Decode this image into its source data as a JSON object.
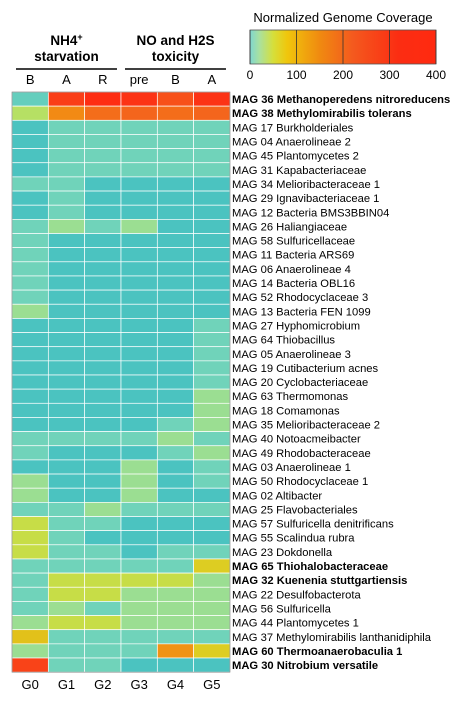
{
  "chart_data": {
    "type": "heatmap",
    "legend": {
      "title": "Normalized Genome Coverage",
      "ticks": [
        0,
        100,
        200,
        300,
        400
      ],
      "stops": [
        "#7fd6d0",
        "#a9e1a0",
        "#d6df3a",
        "#f0c60c",
        "#f08a10",
        "#f45a1e",
        "#fb2d12",
        "#ff2a10"
      ]
    },
    "condition_headers": [
      {
        "lines": [
          "NH4+",
          "starvation"
        ],
        "sup_text": "+"
      },
      {
        "lines": [
          "NO and H2S",
          "toxicity"
        ]
      }
    ],
    "columns": [
      "B",
      "A",
      "R",
      "pre",
      "B",
      "A"
    ],
    "groups": [
      "G0",
      "G1",
      "G2",
      "G3",
      "G4",
      "G5"
    ],
    "rows": [
      {
        "label": "MAG 36 Methanoperedens nitroreducens",
        "bold": true,
        "values": [
          10,
          300,
          380,
          330,
          260,
          330
        ]
      },
      {
        "label": "MAG 38 Methylomirabilis tolerans",
        "bold": true,
        "values": [
          30,
          130,
          200,
          220,
          200,
          220
        ]
      },
      {
        "label": "MAG 17 Burkholderiales",
        "bold": false,
        "values": [
          4,
          12,
          12,
          12,
          12,
          12
        ]
      },
      {
        "label": "MAG 04 Anaerolineae 2",
        "bold": false,
        "values": [
          4,
          12,
          12,
          12,
          12,
          12
        ]
      },
      {
        "label": "MAG 45 Plantomycetes 2",
        "bold": false,
        "values": [
          4,
          12,
          12,
          12,
          12,
          12
        ]
      },
      {
        "label": "MAG 31 Kapabacteriaceae",
        "bold": false,
        "values": [
          4,
          12,
          12,
          12,
          12,
          12
        ]
      },
      {
        "label": "MAG 34 Melioribacteraceae 1",
        "bold": false,
        "values": [
          12,
          12,
          4,
          4,
          4,
          4
        ]
      },
      {
        "label": "MAG 29 Ignavibacteriaceae 1",
        "bold": false,
        "values": [
          4,
          12,
          4,
          4,
          4,
          4
        ]
      },
      {
        "label": "MAG 12 Bacteria BMS3BBIN04",
        "bold": false,
        "values": [
          4,
          12,
          4,
          4,
          4,
          4
        ]
      },
      {
        "label": "MAG 26 Haliangiaceae",
        "bold": false,
        "values": [
          12,
          22,
          12,
          22,
          4,
          4
        ]
      },
      {
        "label": "MAG 58 Sulfuricellaceae",
        "bold": false,
        "values": [
          12,
          4,
          4,
          4,
          4,
          4
        ]
      },
      {
        "label": "MAG 11 Bacteria ARS69",
        "bold": false,
        "values": [
          12,
          4,
          4,
          4,
          4,
          4
        ]
      },
      {
        "label": "MAG 06 Anaerolineae 4",
        "bold": false,
        "values": [
          12,
          4,
          4,
          4,
          4,
          4
        ]
      },
      {
        "label": "MAG 14 Bacteria OBL16",
        "bold": false,
        "values": [
          12,
          4,
          4,
          4,
          4,
          4
        ]
      },
      {
        "label": "MAG 52 Rhodocyclaceae 3",
        "bold": false,
        "values": [
          12,
          4,
          4,
          4,
          4,
          4
        ]
      },
      {
        "label": "MAG 13 Bacteria FEN 1099",
        "bold": false,
        "values": [
          22,
          4,
          4,
          4,
          4,
          4
        ]
      },
      {
        "label": "MAG 27 Hyphomicrobium",
        "bold": false,
        "values": [
          4,
          4,
          4,
          4,
          4,
          12
        ]
      },
      {
        "label": "MAG 64 Thiobacillus",
        "bold": false,
        "values": [
          4,
          4,
          4,
          4,
          4,
          12
        ]
      },
      {
        "label": "MAG 05 Anaerolineae 3",
        "bold": false,
        "values": [
          4,
          4,
          4,
          4,
          4,
          12
        ]
      },
      {
        "label": "MAG 19 Cutibacterium acnes",
        "bold": false,
        "values": [
          4,
          4,
          4,
          4,
          4,
          12
        ]
      },
      {
        "label": "MAG 20 Cyclobacteriaceae",
        "bold": false,
        "values": [
          4,
          4,
          4,
          4,
          4,
          12
        ]
      },
      {
        "label": "MAG 63 Thermomonas",
        "bold": false,
        "values": [
          4,
          4,
          4,
          4,
          4,
          22
        ]
      },
      {
        "label": "MAG 18 Comamonas",
        "bold": false,
        "values": [
          4,
          4,
          4,
          4,
          4,
          22
        ]
      },
      {
        "label": "MAG 35 Melioribacteraceae 2",
        "bold": false,
        "values": [
          4,
          4,
          4,
          4,
          12,
          22
        ]
      },
      {
        "label": "MAG 40 Notoacmeibacter",
        "bold": false,
        "values": [
          12,
          12,
          12,
          12,
          22,
          12
        ]
      },
      {
        "label": "MAG 49 Rhodobacteraceae",
        "bold": false,
        "values": [
          12,
          4,
          4,
          4,
          12,
          22
        ]
      },
      {
        "label": "MAG 03 Anaerolineae 1",
        "bold": false,
        "values": [
          4,
          4,
          4,
          22,
          4,
          12
        ]
      },
      {
        "label": "MAG 50 Rhodocyclaceae 1",
        "bold": false,
        "values": [
          22,
          4,
          4,
          22,
          4,
          12
        ]
      },
      {
        "label": "MAG 02 Altibacter",
        "bold": false,
        "values": [
          22,
          4,
          4,
          22,
          4,
          4
        ]
      },
      {
        "label": "MAG 25 Flavobacteriales",
        "bold": false,
        "values": [
          12,
          12,
          22,
          12,
          12,
          12
        ]
      },
      {
        "label": "MAG 57 Sulfuricella denitrificans",
        "bold": false,
        "values": [
          40,
          12,
          12,
          4,
          4,
          4
        ]
      },
      {
        "label": "MAG 55 Scalindua rubra",
        "bold": false,
        "values": [
          40,
          12,
          4,
          4,
          4,
          4
        ]
      },
      {
        "label": "MAG 23 Dokdonella",
        "bold": false,
        "values": [
          40,
          12,
          12,
          4,
          12,
          12
        ]
      },
      {
        "label": "MAG 65 Thiohalobacteraceae",
        "bold": true,
        "values": [
          12,
          12,
          12,
          12,
          12,
          60
        ]
      },
      {
        "label": "MAG 32 Kuenenia stuttgartiensis",
        "bold": true,
        "values": [
          12,
          40,
          40,
          40,
          40,
          22
        ]
      },
      {
        "label": "MAG 22 Desulfobacterota",
        "bold": false,
        "values": [
          12,
          40,
          40,
          22,
          22,
          22
        ]
      },
      {
        "label": "MAG 56 Sulfuricella",
        "bold": false,
        "values": [
          12,
          22,
          12,
          22,
          22,
          22
        ]
      },
      {
        "label": "MAG 44 Plantomycetes 1",
        "bold": false,
        "values": [
          22,
          40,
          40,
          22,
          22,
          22
        ]
      },
      {
        "label": "MAG 37 Methylomirabilis lanthanidiphila",
        "bold": false,
        "values": [
          70,
          12,
          12,
          12,
          12,
          12
        ]
      },
      {
        "label": "MAG 60 Thermoanaerobaculia 1",
        "bold": true,
        "values": [
          22,
          12,
          12,
          12,
          120,
          60
        ]
      },
      {
        "label": "MAG 30 Nitrobium versatile",
        "bold": true,
        "values": [
          290,
          12,
          12,
          4,
          4,
          4
        ]
      }
    ]
  }
}
